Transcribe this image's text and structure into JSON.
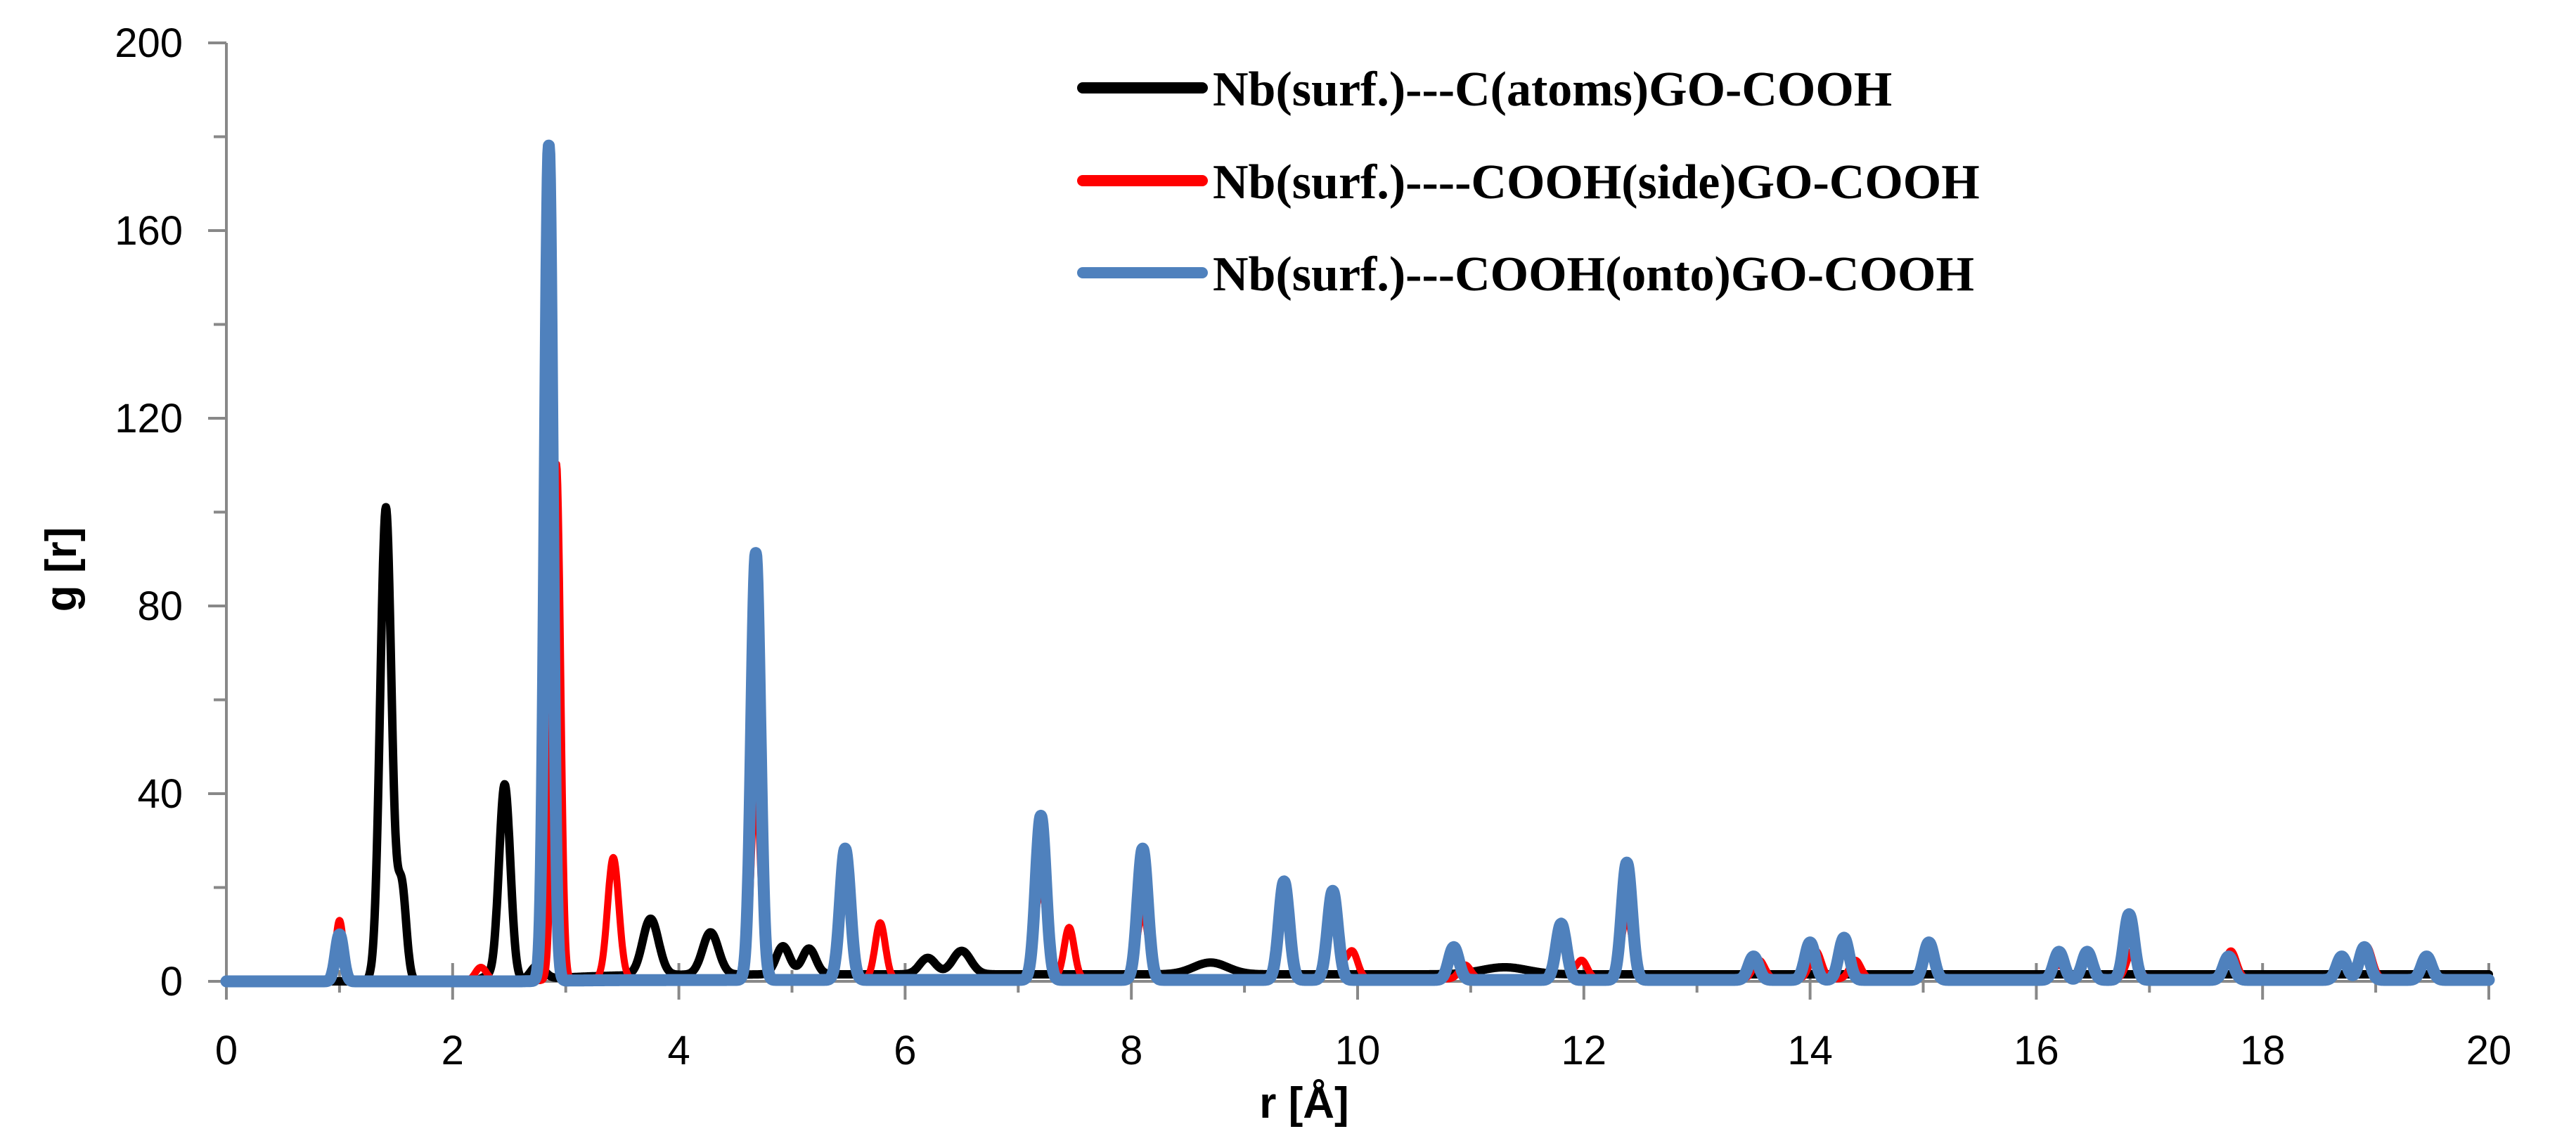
{
  "chart_data": {
    "type": "line",
    "title": "",
    "xlabel": "r [Å]",
    "ylabel": "g [r]",
    "xlim": [
      0,
      20
    ],
    "ylim": [
      0,
      200
    ],
    "x_ticks": [
      0,
      2,
      4,
      6,
      8,
      10,
      12,
      14,
      16,
      18,
      20
    ],
    "y_ticks": [
      0,
      40,
      80,
      120,
      160,
      200
    ],
    "legend_position": "top-center",
    "series": [
      {
        "name": "Nb(surf.)---C(atoms)GO-COOH",
        "color": "#000000",
        "baseline": 0,
        "peaks": [
          [
            1.41,
            101,
            0.05
          ],
          [
            1.55,
            20,
            0.04
          ],
          [
            2.3,
            1.0,
            0.05
          ],
          [
            2.46,
            42,
            0.05
          ],
          [
            2.75,
            3,
            0.06
          ],
          [
            3.75,
            12,
            0.07
          ],
          [
            4.28,
            9,
            0.07
          ],
          [
            4.92,
            6,
            0.06
          ],
          [
            5.15,
            5.5,
            0.06
          ],
          [
            6.2,
            3.5,
            0.07
          ],
          [
            6.5,
            5,
            0.08
          ],
          [
            8.7,
            2.5,
            0.15
          ],
          [
            11.3,
            1.5,
            0.2
          ]
        ],
        "tail": 1.5
      },
      {
        "name": "Nb(surf.)----COOH(side)GO-COOH",
        "color": "#ff0000",
        "baseline": 0,
        "peaks": [
          [
            1.0,
            13,
            0.035
          ],
          [
            2.25,
            3,
            0.05
          ],
          [
            2.92,
            110,
            0.035
          ],
          [
            3.42,
            26,
            0.05
          ],
          [
            4.68,
            42,
            0.04
          ],
          [
            5.47,
            28,
            0.05
          ],
          [
            5.78,
            12,
            0.045
          ],
          [
            7.2,
            20,
            0.05
          ],
          [
            7.45,
            11,
            0.045
          ],
          [
            8.1,
            14,
            0.05
          ],
          [
            9.35,
            15,
            0.05
          ],
          [
            9.78,
            17,
            0.05
          ],
          [
            9.95,
            6,
            0.05
          ],
          [
            10.95,
            3,
            0.05
          ],
          [
            11.8,
            10,
            0.05
          ],
          [
            11.98,
            4,
            0.05
          ],
          [
            12.38,
            13,
            0.05
          ],
          [
            13.55,
            4,
            0.05
          ],
          [
            14.05,
            6,
            0.05
          ],
          [
            14.4,
            4,
            0.05
          ],
          [
            15.05,
            6,
            0.05
          ],
          [
            16.2,
            3,
            0.05
          ],
          [
            16.45,
            4,
            0.05
          ],
          [
            16.85,
            6,
            0.05
          ],
          [
            17.72,
            6,
            0.05
          ],
          [
            18.7,
            3,
            0.05
          ],
          [
            18.92,
            7,
            0.05
          ],
          [
            19.45,
            5,
            0.05
          ]
        ],
        "tail": 0.5
      },
      {
        "name": "Nb(surf.)---COOH(onto)GO-COOH",
        "color": "#4f81bd",
        "baseline": 0,
        "peaks": [
          [
            1.0,
            10,
            0.035
          ],
          [
            2.85,
            178,
            0.035
          ],
          [
            4.68,
            91,
            0.04
          ],
          [
            5.47,
            28,
            0.045
          ],
          [
            7.2,
            35,
            0.045
          ],
          [
            8.1,
            28,
            0.045
          ],
          [
            9.35,
            21,
            0.045
          ],
          [
            9.78,
            19,
            0.045
          ],
          [
            10.85,
            7,
            0.045
          ],
          [
            11.8,
            12,
            0.045
          ],
          [
            12.38,
            25,
            0.045
          ],
          [
            13.5,
            5,
            0.045
          ],
          [
            14.0,
            8,
            0.045
          ],
          [
            14.3,
            9,
            0.045
          ],
          [
            15.05,
            8,
            0.045
          ],
          [
            16.2,
            6,
            0.045
          ],
          [
            16.45,
            6,
            0.045
          ],
          [
            16.82,
            14,
            0.045
          ],
          [
            17.7,
            5,
            0.045
          ],
          [
            18.7,
            5,
            0.045
          ],
          [
            18.9,
            7,
            0.045
          ],
          [
            19.45,
            5,
            0.045
          ]
        ],
        "tail": 0.3
      }
    ]
  }
}
